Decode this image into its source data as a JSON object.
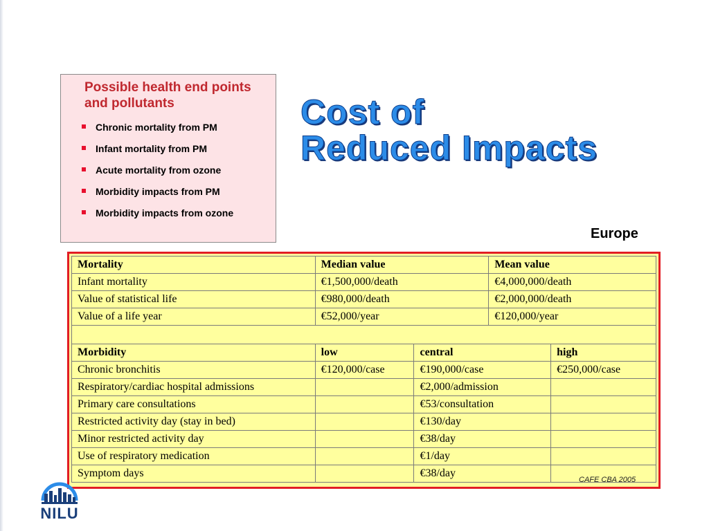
{
  "info_box": {
    "title": "Possible health end points and pollutants",
    "items": [
      "Chronic mortality from PM",
      "Infant mortality from PM",
      "Acute mortality from ozone",
      "Morbidity impacts from PM",
      "Morbidity impacts from ozone"
    ]
  },
  "title": {
    "line1": "Cost of",
    "line2": "Reduced Impacts"
  },
  "region": "Europe",
  "mortality": {
    "headers": [
      "Mortality",
      "Median value",
      "Mean value"
    ],
    "rows": [
      [
        "Infant mortality",
        "€1,500,000/death",
        "€4,000,000/death"
      ],
      [
        "Value of statistical life",
        "€980,000/death",
        "€2,000,000/death"
      ],
      [
        "Value of a life year",
        "€52,000/year",
        "€120,000/year"
      ]
    ]
  },
  "morbidity": {
    "headers": [
      "Morbidity",
      "low",
      "central",
      "high"
    ],
    "rows": [
      [
        "Chronic bronchitis",
        "€120,000/case",
        "€190,000/case",
        "€250,000/case"
      ],
      [
        "Respiratory/cardiac hospital admissions",
        "",
        "€2,000/admission",
        ""
      ],
      [
        "Primary care consultations",
        "",
        "€53/consultation",
        ""
      ],
      [
        "Restricted activity day (stay in bed)",
        "",
        "€130/day",
        ""
      ],
      [
        "Minor restricted activity day",
        "",
        "€38/day",
        ""
      ],
      [
        "Use of respiratory medication",
        "",
        "€1/day",
        ""
      ],
      [
        "Symptom days",
        "",
        "€38/day",
        ""
      ]
    ]
  },
  "source": "CAFE CBA 2005",
  "logo": {
    "text": "NILU",
    "icon": "nilu-skyline-icon",
    "color": "#1a3f7a"
  },
  "colors": {
    "title": "#2c8ce8",
    "frame": "#e21d24",
    "table_bg": "#ffff9e",
    "box_bg": "#fde3e6",
    "box_title": "#c0282f"
  }
}
